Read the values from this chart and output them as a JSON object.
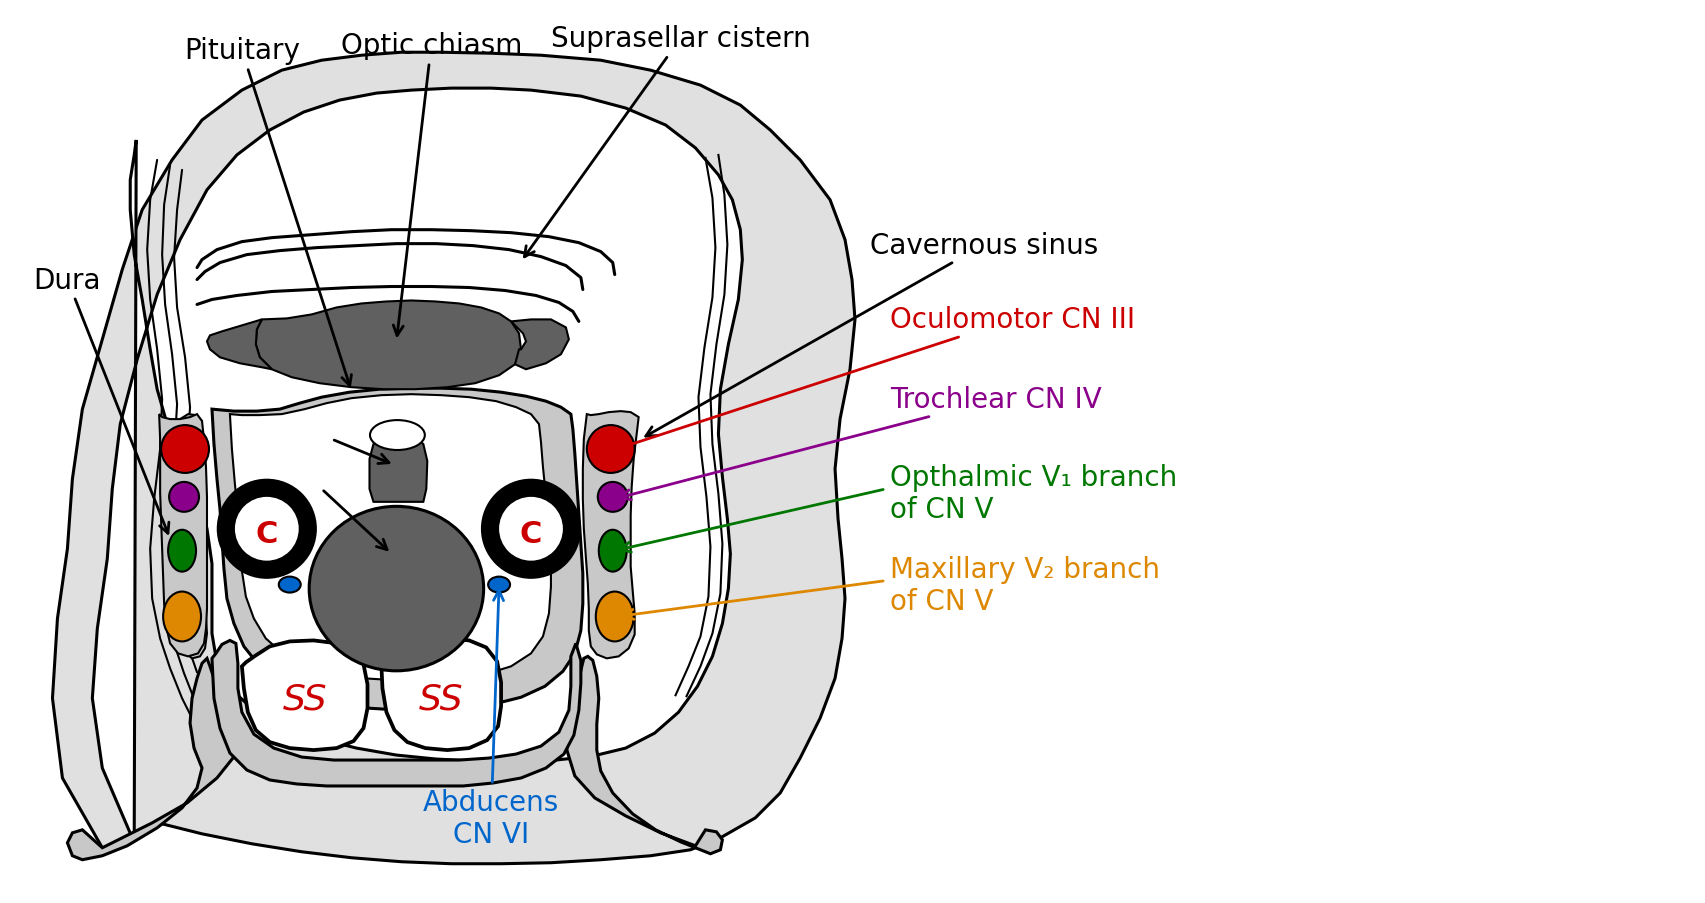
{
  "bg_color": "#ffffff",
  "outline": "#000000",
  "lw_main": 2.2,
  "lw_thin": 1.5,
  "colors": {
    "dark_gray": "#606060",
    "light_gray": "#c8c8c8",
    "mid_gray": "#aaaaaa",
    "black": "#000000",
    "white": "#ffffff",
    "red": "#cc0000",
    "purple": "#8B008B",
    "green": "#007700",
    "orange": "#dd8800",
    "blue": "#0066cc"
  },
  "labels": {
    "pituitary": "Pituitary",
    "optic_chiasm": "Optic chiasm",
    "suprasellar": "Suprasellar cistern",
    "dura": "Dura",
    "cavernous": "Cavernous sinus",
    "oculomotor": "Oculomotor CN III",
    "trochlear": "Trochlear CN IV",
    "opthalmic_1": "Opthalmic V₁ branch",
    "opthalmic_2": "of CN V",
    "maxillary_1": "Maxillary V₂ branch",
    "maxillary_2": "of CN V",
    "abducens_1": "Abducens",
    "abducens_2": "CN VI",
    "ss": "SS",
    "c": "C"
  }
}
